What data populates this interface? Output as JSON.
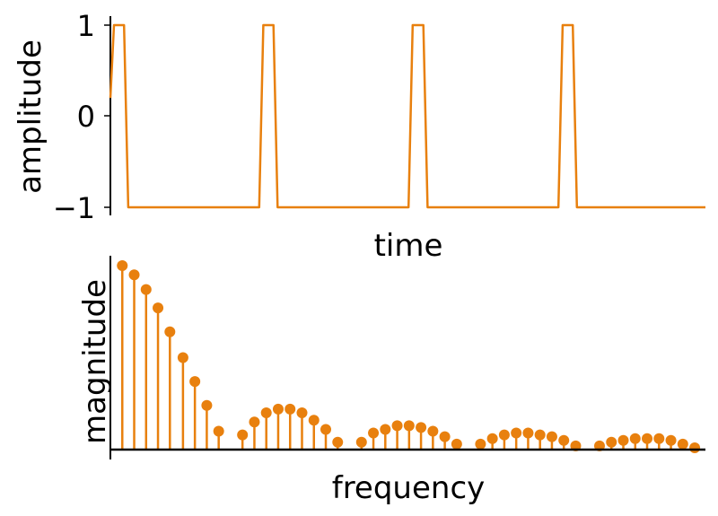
{
  "chart_data": [
    {
      "type": "line",
      "xlabel": "time",
      "ylabel": "amplitude",
      "yticks": [
        {
          "value": 1,
          "label": "1"
        },
        {
          "value": 0,
          "label": "0"
        },
        {
          "value": -1,
          "label": "−1"
        }
      ],
      "ylim": [
        -1.15,
        1.15
      ],
      "xlim": [
        0,
        1
      ],
      "series": [
        {
          "color": "#e8800e",
          "points": [
            [
              0.0,
              0.2
            ],
            [
              0.006,
              1
            ],
            [
              0.023,
              1
            ],
            [
              0.03,
              -1
            ],
            [
              0.25,
              -1
            ],
            [
              0.257,
              1
            ],
            [
              0.274,
              1
            ],
            [
              0.281,
              -1
            ],
            [
              0.501,
              -1
            ],
            [
              0.508,
              1
            ],
            [
              0.526,
              1
            ],
            [
              0.533,
              -1
            ],
            [
              0.753,
              -1
            ],
            [
              0.76,
              1
            ],
            [
              0.777,
              1
            ],
            [
              0.784,
              -1
            ],
            [
              1.0,
              -1
            ]
          ]
        }
      ],
      "grid": false
    },
    {
      "type": "stem",
      "xlabel": "frequency",
      "ylabel": "magnitude",
      "ylim": [
        0,
        1.05
      ],
      "xlim": [
        0,
        1
      ],
      "grid": false,
      "series": [
        {
          "color": "#e8800e",
          "x": [
            0.02,
            0.04,
            0.06,
            0.08,
            0.1,
            0.122,
            0.142,
            0.162,
            0.182,
            0.222,
            0.242,
            0.262,
            0.282,
            0.302,
            0.322,
            0.342,
            0.362,
            0.382,
            0.422,
            0.442,
            0.462,
            0.482,
            0.502,
            0.522,
            0.542,
            0.562,
            0.582,
            0.622,
            0.642,
            0.662,
            0.682,
            0.702,
            0.722,
            0.742,
            0.762,
            0.782,
            0.822,
            0.842,
            0.862,
            0.882,
            0.902,
            0.922,
            0.942,
            0.962,
            0.982
          ],
          "values": [
            1.0,
            0.95,
            0.87,
            0.77,
            0.64,
            0.5,
            0.37,
            0.24,
            0.1,
            0.08,
            0.15,
            0.2,
            0.22,
            0.22,
            0.2,
            0.16,
            0.11,
            0.04,
            0.04,
            0.09,
            0.11,
            0.13,
            0.13,
            0.12,
            0.1,
            0.07,
            0.03,
            0.03,
            0.06,
            0.08,
            0.09,
            0.09,
            0.08,
            0.07,
            0.05,
            0.02,
            0.02,
            0.04,
            0.05,
            0.06,
            0.06,
            0.06,
            0.05,
            0.03,
            0.01
          ]
        }
      ]
    }
  ]
}
